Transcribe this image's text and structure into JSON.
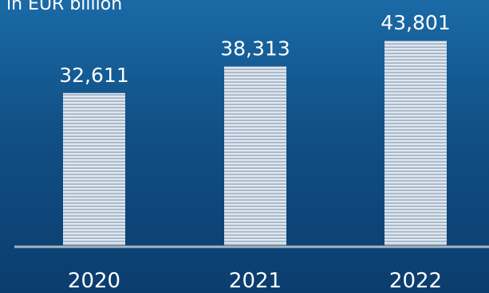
{
  "chart_data": {
    "type": "bar",
    "ylabel": "in EUR billion",
    "categories": [
      "2020",
      "2021",
      "2022"
    ],
    "values": [
      32.611,
      38.313,
      43.801
    ],
    "value_labels": [
      "32,611",
      "38,313",
      "43,801"
    ],
    "ylim": [
      0,
      50
    ],
    "grid": false,
    "colors": {
      "bar_light": "#dfe7f0",
      "bar_dark": "#9fb0c3",
      "axis": "#a9b5c2"
    }
  }
}
